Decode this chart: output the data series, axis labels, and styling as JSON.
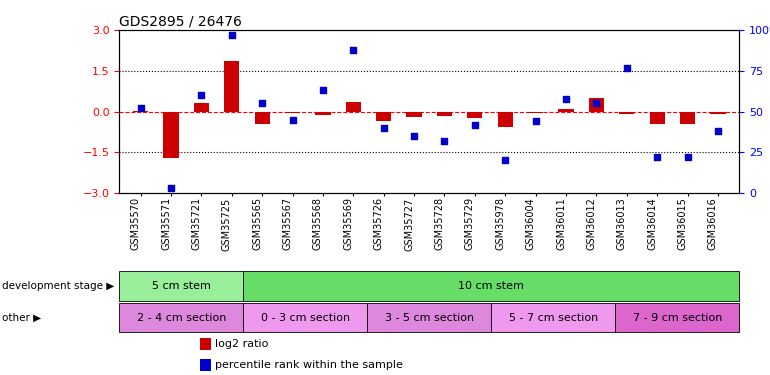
{
  "title": "GDS2895 / 26476",
  "samples": [
    "GSM35570",
    "GSM35571",
    "GSM35721",
    "GSM35725",
    "GSM35565",
    "GSM35567",
    "GSM35568",
    "GSM35569",
    "GSM35726",
    "GSM35727",
    "GSM35728",
    "GSM35729",
    "GSM35978",
    "GSM36004",
    "GSM36011",
    "GSM36012",
    "GSM36013",
    "GSM36014",
    "GSM36015",
    "GSM36016"
  ],
  "log2_ratio": [
    0.02,
    -1.7,
    0.3,
    1.85,
    -0.45,
    -0.05,
    -0.12,
    0.35,
    -0.35,
    -0.2,
    -0.15,
    -0.25,
    -0.55,
    -0.05,
    0.1,
    0.5,
    -0.08,
    -0.45,
    -0.45,
    -0.1
  ],
  "percentile": [
    52,
    3,
    60,
    97,
    55,
    45,
    63,
    88,
    40,
    35,
    32,
    42,
    20,
    44,
    58,
    55,
    77,
    22,
    22,
    38
  ],
  "ylim_left": [
    -3,
    3
  ],
  "ylim_right": [
    0,
    100
  ],
  "yticks_left": [
    -3,
    -1.5,
    0,
    1.5,
    3
  ],
  "yticks_right": [
    0,
    25,
    50,
    75,
    100
  ],
  "dotted_lines": [
    -1.5,
    1.5
  ],
  "bar_color": "#cc0000",
  "scatter_color": "#0000cc",
  "bar_width": 0.5,
  "dev_stage_groups": [
    {
      "label": "5 cm stem",
      "start": 0,
      "end": 4,
      "color": "#99ee99"
    },
    {
      "label": "10 cm stem",
      "start": 4,
      "end": 20,
      "color": "#66dd66"
    }
  ],
  "other_groups": [
    {
      "label": "2 - 4 cm section",
      "start": 0,
      "end": 4,
      "color": "#dd88dd"
    },
    {
      "label": "0 - 3 cm section",
      "start": 4,
      "end": 8,
      "color": "#ee99ee"
    },
    {
      "label": "3 - 5 cm section",
      "start": 8,
      "end": 12,
      "color": "#dd88dd"
    },
    {
      "label": "5 - 7 cm section",
      "start": 12,
      "end": 16,
      "color": "#ee99ee"
    },
    {
      "label": "7 - 9 cm section",
      "start": 16,
      "end": 20,
      "color": "#dd66cc"
    }
  ],
  "legend_items": [
    {
      "label": "log2 ratio",
      "color": "#cc0000"
    },
    {
      "label": "percentile rank within the sample",
      "color": "#0000cc"
    }
  ],
  "tick_label_fontsize": 7,
  "title_fontsize": 10
}
